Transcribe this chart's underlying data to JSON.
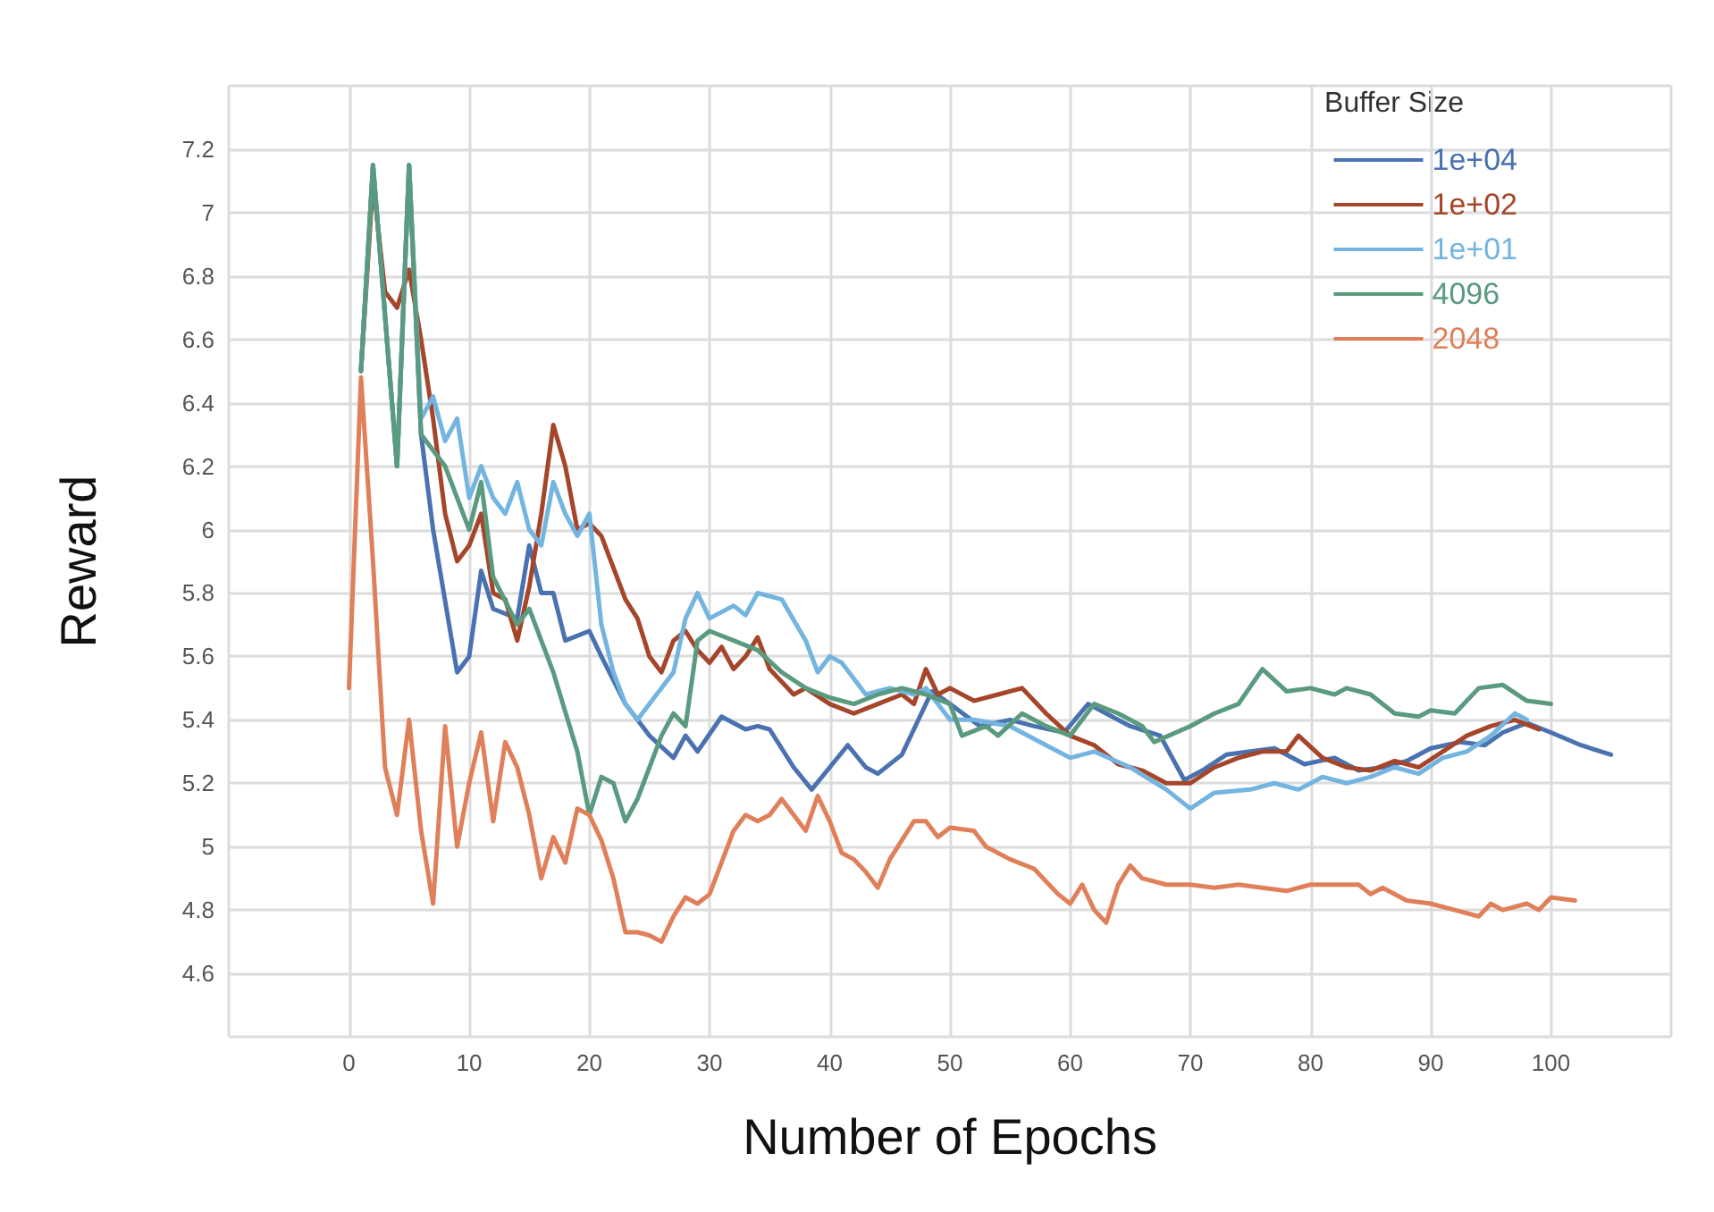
{
  "chart_data": {
    "type": "line",
    "xlabel": "Number of Epochs",
    "ylabel": "Reward",
    "legend_title": "Buffer Size",
    "legend": "top right",
    "grid": true,
    "marker": "none",
    "line_style": "solid",
    "xlim": [
      -10,
      110
    ],
    "xticks": [
      {
        "value": -10,
        "label": null
      },
      0,
      10,
      20,
      30,
      40,
      50,
      60,
      70,
      80,
      90,
      100,
      {
        "value": 110,
        "label": null
      }
    ],
    "ylim": [
      4.4,
      7.4
    ],
    "yticks": [
      {
        "value": 4.4,
        "label": null
      },
      4.6,
      4.8,
      5,
      5.2,
      5.4,
      5.6,
      5.8,
      6,
      6.2,
      6.4,
      6.6,
      6.8,
      7,
      7.2,
      {
        "value": 7.4,
        "label": null
      }
    ],
    "series": [
      {
        "name": "1e+04",
        "color": "#4a72b0",
        "x": [
          1,
          2,
          4,
          5,
          6,
          7,
          9,
          10,
          11,
          12,
          14,
          15,
          16,
          17,
          18,
          20,
          21,
          23,
          25,
          27,
          28,
          29,
          31,
          33,
          34,
          35,
          37,
          38.5,
          40,
          41.5,
          43,
          44,
          46,
          48.5,
          50,
          52.5,
          55,
          57,
          59.5,
          61.5,
          63,
          65,
          67.5,
          69.5,
          71,
          73,
          75,
          77,
          79.5,
          82,
          84,
          86,
          88,
          90,
          92.5,
          94.5,
          96,
          98,
          100,
          102.5,
          105
        ],
        "values": [
          6.5,
          7.15,
          6.2,
          7.15,
          6.3,
          6.0,
          5.55,
          5.6,
          5.87,
          5.75,
          5.72,
          5.95,
          5.8,
          5.8,
          5.65,
          5.68,
          5.6,
          5.45,
          5.35,
          5.28,
          5.35,
          5.3,
          5.41,
          5.37,
          5.38,
          5.37,
          5.25,
          5.18,
          5.25,
          5.32,
          5.25,
          5.23,
          5.29,
          5.49,
          5.45,
          5.38,
          5.4,
          5.38,
          5.36,
          5.45,
          5.42,
          5.38,
          5.35,
          5.21,
          5.24,
          5.29,
          5.3,
          5.31,
          5.26,
          5.28,
          5.24,
          5.25,
          5.27,
          5.31,
          5.33,
          5.32,
          5.36,
          5.39,
          5.36,
          5.32,
          5.29
        ]
      },
      {
        "name": "1e+02",
        "color": "#a5452a",
        "x": [
          1,
          2,
          3,
          4,
          5,
          6,
          7,
          8,
          9,
          10,
          11,
          12,
          13,
          14,
          15,
          16,
          17,
          18,
          19,
          20,
          21,
          22,
          23,
          24,
          25,
          26,
          27,
          28,
          29,
          30,
          31,
          32,
          33,
          34,
          35,
          36,
          37,
          38,
          40,
          42,
          44,
          46,
          47,
          48,
          49,
          50,
          52,
          54,
          56,
          58,
          60,
          62,
          64,
          66,
          68,
          70,
          72,
          74,
          76,
          78,
          79,
          81,
          83,
          85,
          87,
          89,
          91,
          93,
          95,
          97,
          99
        ],
        "values": [
          6.5,
          7.1,
          6.75,
          6.7,
          6.82,
          6.6,
          6.35,
          6.05,
          5.9,
          5.95,
          6.05,
          5.8,
          5.78,
          5.65,
          5.82,
          6.05,
          6.33,
          6.2,
          6.0,
          6.02,
          5.98,
          5.88,
          5.78,
          5.72,
          5.6,
          5.55,
          5.65,
          5.68,
          5.62,
          5.58,
          5.63,
          5.56,
          5.6,
          5.66,
          5.56,
          5.52,
          5.48,
          5.5,
          5.45,
          5.42,
          5.45,
          5.48,
          5.45,
          5.56,
          5.48,
          5.5,
          5.46,
          5.48,
          5.5,
          5.42,
          5.35,
          5.32,
          5.26,
          5.24,
          5.2,
          5.2,
          5.25,
          5.28,
          5.3,
          5.3,
          5.35,
          5.28,
          5.25,
          5.24,
          5.27,
          5.25,
          5.3,
          5.35,
          5.38,
          5.4,
          5.37
        ]
      },
      {
        "name": "1e+01",
        "color": "#74b4e0",
        "x": [
          1,
          2,
          4,
          5,
          6,
          7,
          8,
          9,
          10,
          11,
          12,
          13,
          14,
          15,
          16,
          17,
          18,
          19,
          20,
          21,
          22,
          23,
          24,
          25,
          27,
          28,
          29,
          30,
          32,
          33,
          34,
          36,
          38,
          39,
          40,
          41,
          43,
          45,
          47,
          48,
          50,
          52,
          55,
          58,
          60,
          62,
          65,
          68,
          70,
          72,
          75,
          77,
          79,
          81,
          83,
          85,
          87,
          89,
          91,
          93,
          95,
          97,
          98
        ],
        "values": [
          6.5,
          7.15,
          6.2,
          7.15,
          6.35,
          6.42,
          6.28,
          6.35,
          6.1,
          6.2,
          6.1,
          6.05,
          6.15,
          6.0,
          5.95,
          6.15,
          6.05,
          5.98,
          6.05,
          5.7,
          5.55,
          5.45,
          5.4,
          5.45,
          5.55,
          5.72,
          5.8,
          5.72,
          5.76,
          5.73,
          5.8,
          5.78,
          5.65,
          5.55,
          5.6,
          5.58,
          5.48,
          5.5,
          5.48,
          5.5,
          5.4,
          5.4,
          5.38,
          5.32,
          5.28,
          5.3,
          5.25,
          5.18,
          5.12,
          5.17,
          5.18,
          5.2,
          5.18,
          5.22,
          5.2,
          5.22,
          5.25,
          5.23,
          5.28,
          5.3,
          5.35,
          5.42,
          5.4
        ]
      },
      {
        "name": "4096",
        "color": "#5a9a7e",
        "x": [
          1,
          2,
          4,
          5,
          6,
          8,
          10,
          11,
          12,
          14,
          15,
          17,
          19,
          20,
          21,
          22,
          23,
          24,
          26,
          27,
          28,
          29,
          30,
          32,
          34,
          36,
          38,
          40,
          42,
          44,
          46,
          48,
          50,
          51,
          53,
          54,
          56,
          58,
          60,
          62,
          64,
          66,
          67,
          70,
          72,
          74,
          76,
          78,
          80,
          82,
          83,
          85,
          87,
          89,
          90,
          92,
          94,
          96,
          98,
          100
        ],
        "values": [
          6.5,
          7.15,
          6.2,
          7.15,
          6.3,
          6.2,
          6.0,
          6.15,
          5.85,
          5.7,
          5.75,
          5.55,
          5.3,
          5.1,
          5.22,
          5.2,
          5.08,
          5.15,
          5.35,
          5.42,
          5.38,
          5.65,
          5.68,
          5.65,
          5.62,
          5.55,
          5.5,
          5.47,
          5.45,
          5.48,
          5.5,
          5.48,
          5.45,
          5.35,
          5.38,
          5.35,
          5.42,
          5.38,
          5.35,
          5.45,
          5.42,
          5.38,
          5.33,
          5.38,
          5.42,
          5.45,
          5.56,
          5.49,
          5.5,
          5.48,
          5.5,
          5.48,
          5.42,
          5.41,
          5.43,
          5.42,
          5.5,
          5.51,
          5.46,
          5.45
        ]
      },
      {
        "name": "2048",
        "color": "#e0805a",
        "x": [
          0,
          1,
          2,
          3,
          4,
          5,
          6,
          7,
          8,
          9,
          10,
          11,
          12,
          13,
          14,
          15,
          16,
          17,
          18,
          19,
          20,
          21,
          22,
          23,
          24,
          25,
          26,
          27,
          28,
          29,
          30,
          31,
          32,
          33,
          34,
          35,
          36,
          37,
          38,
          39,
          40,
          41,
          42,
          43,
          44,
          45,
          46,
          47,
          48,
          49,
          50,
          52,
          53,
          55,
          57,
          59,
          60,
          61,
          62,
          63,
          64,
          65,
          66,
          68,
          70,
          72,
          74,
          76,
          78,
          80,
          82,
          84,
          85,
          86,
          88,
          90,
          92,
          94,
          95,
          96,
          98,
          99,
          100,
          102
        ],
        "values": [
          5.5,
          6.48,
          5.9,
          5.25,
          5.1,
          5.4,
          5.05,
          4.82,
          5.38,
          5.0,
          5.2,
          5.36,
          5.08,
          5.33,
          5.25,
          5.1,
          4.9,
          5.03,
          4.95,
          5.12,
          5.1,
          5.02,
          4.9,
          4.73,
          4.73,
          4.72,
          4.7,
          4.78,
          4.84,
          4.82,
          4.85,
          4.95,
          5.05,
          5.1,
          5.08,
          5.1,
          5.15,
          5.1,
          5.05,
          5.16,
          5.08,
          4.98,
          4.96,
          4.92,
          4.87,
          4.96,
          5.02,
          5.08,
          5.08,
          5.03,
          5.06,
          5.05,
          5.0,
          4.96,
          4.93,
          4.85,
          4.82,
          4.88,
          4.8,
          4.76,
          4.88,
          4.94,
          4.9,
          4.88,
          4.88,
          4.87,
          4.88,
          4.87,
          4.86,
          4.88,
          4.88,
          4.88,
          4.85,
          4.87,
          4.83,
          4.82,
          4.8,
          4.78,
          4.82,
          4.8,
          4.82,
          4.8,
          4.84,
          4.83
        ]
      }
    ]
  }
}
